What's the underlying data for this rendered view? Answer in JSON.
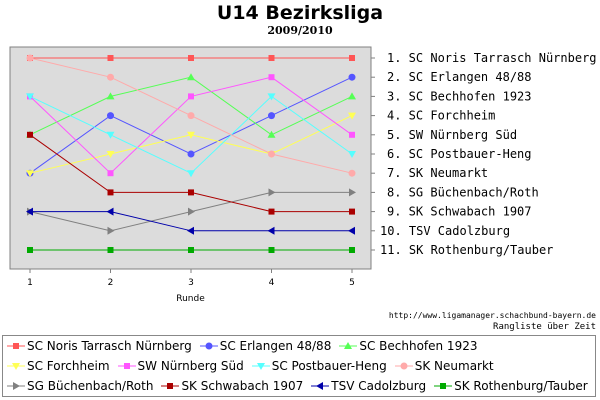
{
  "header": {
    "title": "U14 Bezirksliga",
    "subtitle": "2009/2010"
  },
  "footer": {
    "source": "http://www.ligamanager.schachbund-bayern.de",
    "caption": "Rangliste über Zeit"
  },
  "chart_data": {
    "type": "line",
    "xlabel": "Runde",
    "ylabel": "",
    "x": [
      1,
      2,
      3,
      4,
      5
    ],
    "ylim": [
      1,
      11
    ],
    "y_inverted": true,
    "grid": false,
    "legend_placement": "bottom",
    "final_standings": [
      "1. SC Noris Tarrasch Nürnberg",
      "2. SC Erlangen 48/88",
      "3. SC Bechhofen 1923",
      "4. SC Forchheim",
      "5. SW Nürnberg Süd",
      "6. SC Postbauer-Heng",
      "7. SK Neumarkt",
      "8. SG Büchenbach/Roth",
      "9. SK Schwabach 1907",
      "10. TSV Cadolzburg",
      "11. SK Rothenburg/Tauber"
    ],
    "series": [
      {
        "name": "SC Noris Tarrasch Nürnberg",
        "color": "#ff5555",
        "marker": "square",
        "values": [
          1,
          1,
          1,
          1,
          1
        ]
      },
      {
        "name": "SC Erlangen 48/88",
        "color": "#5555ff",
        "marker": "circle",
        "values": [
          7,
          4,
          6,
          4,
          2
        ]
      },
      {
        "name": "SC Bechhofen 1923",
        "color": "#55ff55",
        "marker": "triangle-up",
        "values": [
          5,
          3,
          2,
          5,
          3
        ]
      },
      {
        "name": "SC Forchheim",
        "color": "#ffff55",
        "marker": "triangle-down",
        "values": [
          7,
          6,
          5,
          6,
          4
        ]
      },
      {
        "name": "SW Nürnberg Süd",
        "color": "#ff55ff",
        "marker": "square",
        "values": [
          3,
          7,
          3,
          2,
          5
        ]
      },
      {
        "name": "SC Postbauer-Heng",
        "color": "#55ffff",
        "marker": "triangle-down",
        "values": [
          3,
          5,
          7,
          3,
          6
        ]
      },
      {
        "name": "SK Neumarkt",
        "color": "#ffaaaa",
        "marker": "circle",
        "values": [
          1,
          2,
          4,
          6,
          7
        ]
      },
      {
        "name": "SG Büchenbach/Roth",
        "color": "#808080",
        "marker": "triangle-right",
        "values": [
          9,
          10,
          9,
          8,
          8
        ]
      },
      {
        "name": "SK Schwabach 1907",
        "color": "#aa0000",
        "marker": "square",
        "values": [
          5,
          8,
          8,
          9,
          9
        ]
      },
      {
        "name": "TSV Cadolzburg",
        "color": "#0000aa",
        "marker": "triangle-left",
        "values": [
          9,
          9,
          10,
          10,
          10
        ]
      },
      {
        "name": "SK Rothenburg/Tauber",
        "color": "#00aa00",
        "marker": "square",
        "values": [
          11,
          11,
          11,
          11,
          11
        ]
      }
    ]
  }
}
